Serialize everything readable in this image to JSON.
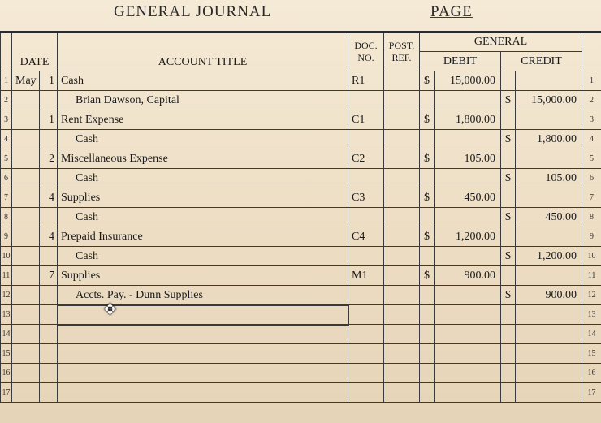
{
  "header": {
    "title": "GENERAL JOURNAL",
    "page_label": "PAGE"
  },
  "columns": {
    "date": "DATE",
    "account_title": "ACCOUNT TITLE",
    "doc_no": "DOC. NO.",
    "post_ref": "POST. REF.",
    "general": "GENERAL",
    "debit": "DEBIT",
    "credit": "CREDIT"
  },
  "rows": [
    {
      "n": "1",
      "month": "May",
      "day": "1",
      "title": "Cash",
      "indent": false,
      "doc": "R1",
      "post": "",
      "d_sym": "$",
      "debit": "15,000.00",
      "c_sym": "",
      "credit": ""
    },
    {
      "n": "2",
      "month": "",
      "day": "",
      "title": "Brian Dawson, Capital",
      "indent": true,
      "doc": "",
      "post": "",
      "d_sym": "",
      "debit": "",
      "c_sym": "$",
      "credit": "15,000.00"
    },
    {
      "n": "3",
      "month": "",
      "day": "1",
      "title": "Rent Expense",
      "indent": false,
      "doc": "C1",
      "post": "",
      "d_sym": "$",
      "debit": "1,800.00",
      "c_sym": "",
      "credit": ""
    },
    {
      "n": "4",
      "month": "",
      "day": "",
      "title": "Cash",
      "indent": true,
      "doc": "",
      "post": "",
      "d_sym": "",
      "debit": "",
      "c_sym": "$",
      "credit": "1,800.00"
    },
    {
      "n": "5",
      "month": "",
      "day": "2",
      "title": "Miscellaneous Expense",
      "indent": false,
      "doc": "C2",
      "post": "",
      "d_sym": "$",
      "debit": "105.00",
      "c_sym": "",
      "credit": ""
    },
    {
      "n": "6",
      "month": "",
      "day": "",
      "title": "Cash",
      "indent": true,
      "doc": "",
      "post": "",
      "d_sym": "",
      "debit": "",
      "c_sym": "$",
      "credit": "105.00"
    },
    {
      "n": "7",
      "month": "",
      "day": "4",
      "title": "Supplies",
      "indent": false,
      "doc": "C3",
      "post": "",
      "d_sym": "$",
      "debit": "450.00",
      "c_sym": "",
      "credit": ""
    },
    {
      "n": "8",
      "month": "",
      "day": "",
      "title": "Cash",
      "indent": true,
      "doc": "",
      "post": "",
      "d_sym": "",
      "debit": "",
      "c_sym": "$",
      "credit": "450.00"
    },
    {
      "n": "9",
      "month": "",
      "day": "4",
      "title": "Prepaid Insurance",
      "indent": false,
      "doc": "C4",
      "post": "",
      "d_sym": "$",
      "debit": "1,200.00",
      "c_sym": "",
      "credit": ""
    },
    {
      "n": "10",
      "month": "",
      "day": "",
      "title": "Cash",
      "indent": true,
      "doc": "",
      "post": "",
      "d_sym": "",
      "debit": "",
      "c_sym": "$",
      "credit": "1,200.00"
    },
    {
      "n": "11",
      "month": "",
      "day": "7",
      "title": "Supplies",
      "indent": false,
      "doc": "M1",
      "post": "",
      "d_sym": "$",
      "debit": "900.00",
      "c_sym": "",
      "credit": ""
    },
    {
      "n": "12",
      "month": "",
      "day": "",
      "title": "Accts. Pay. - Dunn Supplies",
      "indent": true,
      "doc": "",
      "post": "",
      "d_sym": "",
      "debit": "",
      "c_sym": "$",
      "credit": "900.00"
    },
    {
      "n": "13",
      "month": "",
      "day": "",
      "title": "",
      "indent": false,
      "doc": "",
      "post": "",
      "d_sym": "",
      "debit": "",
      "c_sym": "",
      "credit": "",
      "active": true
    },
    {
      "n": "14",
      "month": "",
      "day": "",
      "title": "",
      "indent": false,
      "doc": "",
      "post": "",
      "d_sym": "",
      "debit": "",
      "c_sym": "",
      "credit": ""
    },
    {
      "n": "15",
      "month": "",
      "day": "",
      "title": "",
      "indent": false,
      "doc": "",
      "post": "",
      "d_sym": "",
      "debit": "",
      "c_sym": "",
      "credit": ""
    },
    {
      "n": "16",
      "month": "",
      "day": "",
      "title": "",
      "indent": false,
      "doc": "",
      "post": "",
      "d_sym": "",
      "debit": "",
      "c_sym": "",
      "credit": ""
    },
    {
      "n": "17",
      "month": "",
      "day": "",
      "title": "",
      "indent": false,
      "doc": "",
      "post": "",
      "d_sym": "",
      "debit": "",
      "c_sym": "",
      "credit": ""
    }
  ]
}
